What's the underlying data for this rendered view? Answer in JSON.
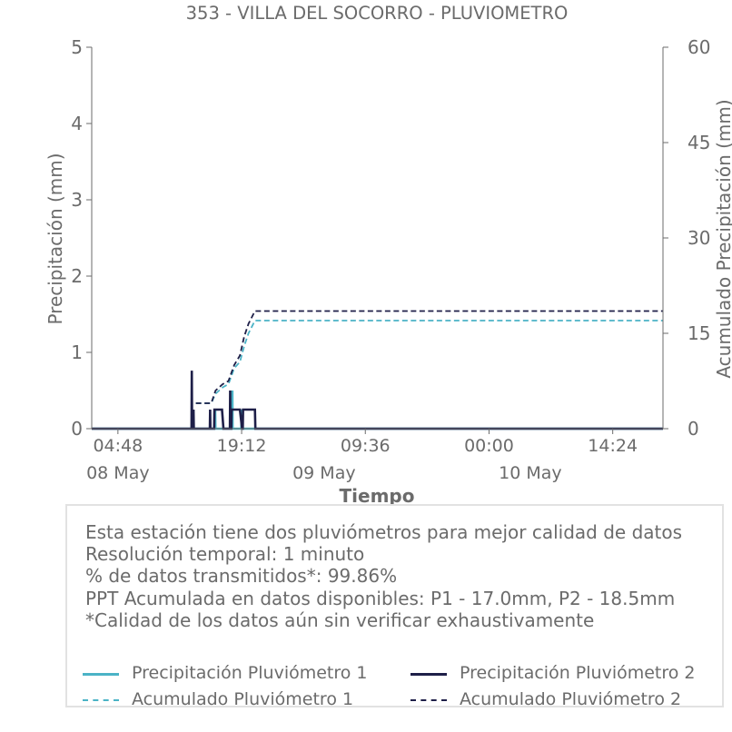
{
  "chart_data": {
    "type": "line",
    "title": "353 - VILLA DEL SOCORRO - PLUVIOMETRO",
    "xlabel": "Tiempo",
    "ylabel": "Precipitación (mm)",
    "y2label": "Acumulado Precipitación (mm)",
    "ylim": [
      0,
      5
    ],
    "y2lim": [
      0,
      60
    ],
    "yticks": [
      "0",
      "1",
      "2",
      "3",
      "4",
      "5"
    ],
    "y2ticks": [
      "0",
      "15",
      "30",
      "45",
      "60"
    ],
    "xlim": [
      "2024-05-08 01:45",
      "2024-05-10 20:15"
    ],
    "xticks": [
      {
        "x": "2024-05-08 04:48",
        "label": "04:48"
      },
      {
        "x": "2024-05-08 19:12",
        "label": "19:12"
      },
      {
        "x": "2024-05-09 09:36",
        "label": "09:36"
      },
      {
        "x": "2024-05-10 00:00",
        "label": "00:00"
      },
      {
        "x": "2024-05-10 14:24",
        "label": "14:24"
      }
    ],
    "date_labels": [
      {
        "x": "2024-05-08 04:48",
        "label": "08 May"
      },
      {
        "x": "2024-05-09 04:48",
        "label": "09 May"
      },
      {
        "x": "2024-05-10 04:48",
        "label": "10 May"
      }
    ],
    "series": [
      {
        "name": "Precipitación Pluviómetro 1",
        "axis": "left",
        "style": "solid",
        "color": "#4bb3c6",
        "points": [
          [
            "2024-05-08 01:45",
            0
          ],
          [
            "2024-05-08 13:30",
            0
          ],
          [
            "2024-05-08 13:32",
            0.25
          ],
          [
            "2024-05-08 13:34",
            0
          ],
          [
            "2024-05-08 16:05",
            0
          ],
          [
            "2024-05-08 16:07",
            0.25
          ],
          [
            "2024-05-08 16:09",
            0
          ],
          [
            "2024-05-08 18:05",
            0
          ],
          [
            "2024-05-08 18:07",
            0.5
          ],
          [
            "2024-05-08 18:09",
            0
          ],
          [
            "2024-05-08 19:10",
            0
          ],
          [
            "2024-05-08 19:12",
            0.25
          ],
          [
            "2024-05-08 19:14",
            0
          ],
          [
            "2024-05-08 20:50",
            0
          ],
          [
            "2024-05-10 20:15",
            0
          ]
        ]
      },
      {
        "name": "Precipitación Pluviómetro 2",
        "axis": "left",
        "style": "solid",
        "color": "#1e1f48",
        "points": [
          [
            "2024-05-08 01:45",
            0
          ],
          [
            "2024-05-08 13:22",
            0
          ],
          [
            "2024-05-08 13:24",
            0.76
          ],
          [
            "2024-05-08 13:26",
            0
          ],
          [
            "2024-05-08 13:34",
            0
          ],
          [
            "2024-05-08 13:36",
            0.25
          ],
          [
            "2024-05-08 13:38",
            0
          ],
          [
            "2024-05-08 15:30",
            0
          ],
          [
            "2024-05-08 15:32",
            0.25
          ],
          [
            "2024-05-08 15:34",
            0
          ],
          [
            "2024-05-08 16:00",
            0
          ],
          [
            "2024-05-08 16:02",
            0.25
          ],
          [
            "2024-05-08 16:20",
            0.25
          ],
          [
            "2024-05-08 16:40",
            0.25
          ],
          [
            "2024-05-08 16:55",
            0.25
          ],
          [
            "2024-05-08 17:05",
            0
          ],
          [
            "2024-05-08 17:50",
            0
          ],
          [
            "2024-05-08 17:52",
            0.5
          ],
          [
            "2024-05-08 17:54",
            0
          ],
          [
            "2024-05-08 18:00",
            0
          ],
          [
            "2024-05-08 18:02",
            0.25
          ],
          [
            "2024-05-08 18:30",
            0.25
          ],
          [
            "2024-05-08 19:00",
            0.25
          ],
          [
            "2024-05-08 19:15",
            0
          ],
          [
            "2024-05-08 19:20",
            0
          ],
          [
            "2024-05-08 19:22",
            0.25
          ],
          [
            "2024-05-08 19:45",
            0.25
          ],
          [
            "2024-05-08 20:10",
            0.25
          ],
          [
            "2024-05-08 20:45",
            0.25
          ],
          [
            "2024-05-08 20:48",
            0
          ],
          [
            "2024-05-10 20:15",
            0
          ]
        ]
      },
      {
        "name": "Acumulado Pluviómetro 1",
        "axis": "right",
        "style": "dashed",
        "color": "#4bb3c6",
        "points": [
          [
            "2024-05-08 01:45",
            0
          ],
          [
            "2024-05-08 13:23",
            0
          ],
          [
            "2024-05-08 13:24",
            4.0
          ],
          [
            "2024-05-08 15:40",
            4.0
          ],
          [
            "2024-05-08 16:10",
            5.5
          ],
          [
            "2024-05-08 17:00",
            6.5
          ],
          [
            "2024-05-08 17:40",
            7.0
          ],
          [
            "2024-05-08 18:20",
            9.5
          ],
          [
            "2024-05-08 19:00",
            10.5
          ],
          [
            "2024-05-08 19:30",
            13.0
          ],
          [
            "2024-05-08 20:00",
            15.0
          ],
          [
            "2024-05-08 20:45",
            17.0
          ],
          [
            "2024-05-10 20:15",
            17.0
          ]
        ]
      },
      {
        "name": "Acumulado Pluviómetro 2",
        "axis": "right",
        "style": "dashed",
        "color": "#1e1f48",
        "points": [
          [
            "2024-05-08 01:45",
            0
          ],
          [
            "2024-05-08 13:23",
            0
          ],
          [
            "2024-05-08 13:24",
            4.0
          ],
          [
            "2024-05-08 15:40",
            4.0
          ],
          [
            "2024-05-08 16:10",
            6.0
          ],
          [
            "2024-05-08 17:00",
            7.0
          ],
          [
            "2024-05-08 17:40",
            7.5
          ],
          [
            "2024-05-08 18:20",
            10.0
          ],
          [
            "2024-05-08 19:00",
            11.5
          ],
          [
            "2024-05-08 19:30",
            14.5
          ],
          [
            "2024-05-08 20:00",
            16.5
          ],
          [
            "2024-05-08 20:45",
            18.5
          ],
          [
            "2024-05-10 20:15",
            18.5
          ]
        ]
      }
    ],
    "grid": false,
    "legend_position": "bottom"
  },
  "info": {
    "lines": [
      "Esta estación tiene dos pluviómetros para mejor calidad de datos",
      "Resolución temporal: 1 minuto",
      "% de datos transmitidos*: 99.86%",
      "PPT Acumulada en datos disponibles: P1 - 17.0mm, P2 - 18.5mm",
      "*Calidad de los datos aún sin verificar exhaustivamente"
    ]
  },
  "legend": {
    "items": [
      {
        "label": "Precipitación Pluviómetro 1",
        "color": "#4bb3c6",
        "style": "solid"
      },
      {
        "label": "Precipitación Pluviómetro 2",
        "color": "#1e1f48",
        "style": "solid"
      },
      {
        "label": "Acumulado Pluviómetro 1",
        "color": "#4bb3c6",
        "style": "dashed"
      },
      {
        "label": "Acumulado Pluviómetro 2",
        "color": "#1e1f48",
        "style": "dashed"
      }
    ]
  }
}
